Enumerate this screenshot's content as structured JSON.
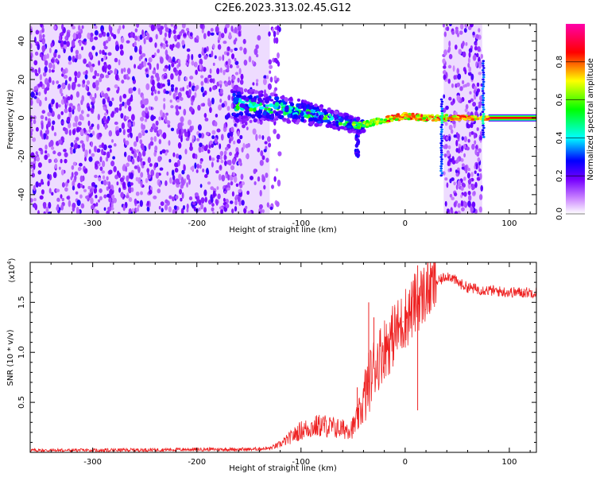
{
  "title": "C2E6.2023.313.02.45.G12",
  "chart_data": [
    {
      "type": "heatmap",
      "xlabel": "Height of straight line (km)",
      "ylabel": "Frequency (Hz)",
      "xlim": [
        -360,
        126
      ],
      "ylim": [
        -50,
        49
      ],
      "xticks": [
        -300,
        -200,
        -100,
        0,
        100
      ],
      "yticks": [
        -40,
        -20,
        0,
        20,
        40
      ],
      "colorbar": {
        "label": "Normalized spectral amplitude",
        "range": [
          0,
          1
        ],
        "ticks": [
          0.0,
          0.2,
          0.4,
          0.6,
          0.8
        ],
        "colors": [
          "#ffffff",
          "#8800ff",
          "#0000ff",
          "#00ffff",
          "#00ff00",
          "#ffff00",
          "#ff0000",
          "#ff00aa"
        ]
      },
      "features": {
        "noise_region_x": [
          -360,
          -130
        ],
        "noise_band_x": [
          37,
          74
        ],
        "signal_track": [
          [
            -160,
            7
          ],
          [
            -140,
            6
          ],
          [
            -120,
            5
          ],
          [
            -100,
            3
          ],
          [
            -80,
            1
          ],
          [
            -60,
            -2
          ],
          [
            -45,
            -4
          ],
          [
            -35,
            -3
          ],
          [
            -20,
            -1
          ],
          [
            0,
            1
          ],
          [
            20,
            0
          ],
          [
            35,
            0
          ],
          [
            60,
            0
          ],
          [
            80,
            0
          ],
          [
            126,
            0
          ]
        ],
        "spikes_x": [
          35,
          75
        ]
      }
    },
    {
      "type": "line",
      "xlabel": "Height of straight line (km)",
      "ylabel": "SNR (10 * v/v)",
      "yscale_label": "(x10",
      "yscale_exp": "4",
      "xlim": [
        -360,
        126
      ],
      "ylim": [
        0,
        19000
      ],
      "xticks": [
        -300,
        -200,
        -100,
        0,
        100
      ],
      "yticks": [
        0.5,
        1.0,
        1.5
      ],
      "ytick_labels": [
        "0.5",
        "1.0",
        "1.5"
      ],
      "color": "#ee2222",
      "series": [
        {
          "x": [
            -360,
            -300,
            -250,
            -200,
            -150,
            -130,
            -120,
            -110,
            -100,
            -90,
            -80,
            -70,
            -60,
            -50,
            -45,
            -40,
            -35,
            -30,
            -25,
            -20,
            -15,
            -10,
            -5,
            0,
            5,
            10,
            15,
            20,
            25,
            30,
            35,
            40,
            45,
            50,
            60,
            70,
            80,
            90,
            100,
            110,
            126
          ],
          "y": [
            200,
            200,
            250,
            300,
            300,
            400,
            800,
            1500,
            2200,
            2500,
            2700,
            2500,
            2300,
            2500,
            3500,
            5000,
            7000,
            8500,
            9500,
            10500,
            11000,
            12000,
            12500,
            13500,
            14000,
            15000,
            15500,
            16000,
            16500,
            17000,
            17300,
            17700,
            17500,
            17000,
            16500,
            16300,
            16200,
            16100,
            16000,
            16000,
            16000
          ],
          "spikes": [
            [
              -35,
              15000
            ],
            [
              -30,
              13500
            ],
            [
              -10,
              14500
            ],
            [
              -2,
              13000
            ],
            [
              12,
              18700
            ],
            [
              12,
              4200
            ],
            [
              -46,
              6500
            ]
          ]
        }
      ]
    }
  ]
}
